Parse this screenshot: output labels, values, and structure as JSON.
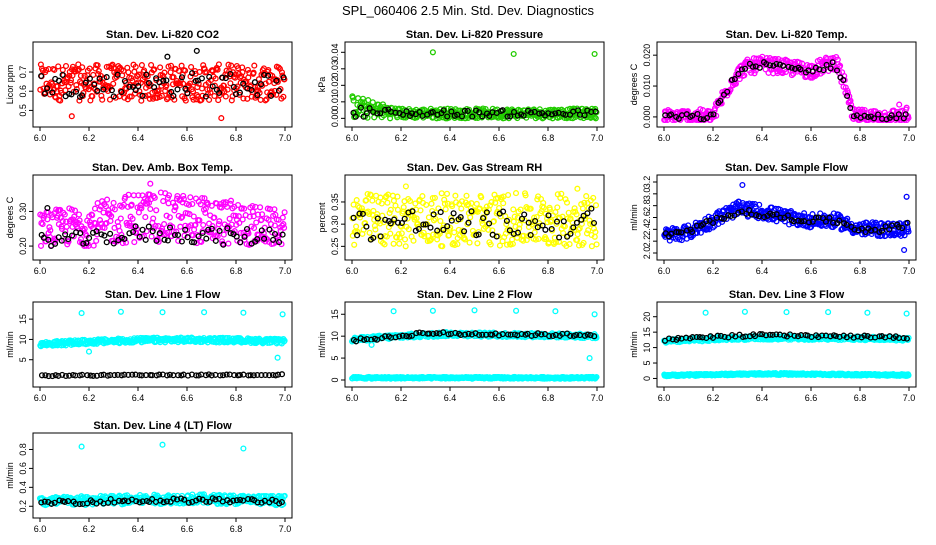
{
  "title": "SPL_060406  2.5 Min. Std. Dev. Diagnostics",
  "colors": {
    "red": "#ff0000",
    "green": "#22cc00",
    "magenta": "#ff00ff",
    "yellow": "#ffff00",
    "blue": "#0000ff",
    "cyan": "#00ffff",
    "black": "#000000"
  },
  "chart_data": [
    {
      "type": "scatter",
      "title": "Stan. Dev. Li-820 CO2",
      "ylabel": "Licor ppm",
      "xlim": [
        6.0,
        7.0
      ],
      "ylim": [
        0.45,
        0.82
      ],
      "xticks": [
        "6.0",
        "6.2",
        "6.4",
        "6.6",
        "6.8",
        "7.0"
      ],
      "yticks": [
        "0.5",
        "0.6",
        "0.7"
      ],
      "series": [
        {
          "color": "red",
          "kind": "band",
          "lo": [
            0.55,
            0.55,
            0.55,
            0.55,
            0.55,
            0.55
          ],
          "hi": [
            0.74,
            0.74,
            0.74,
            0.74,
            0.74,
            0.74
          ]
        },
        {
          "color": "black",
          "kind": "band",
          "lo": [
            0.57,
            0.57,
            0.57,
            0.57,
            0.57,
            0.57
          ],
          "hi": [
            0.7,
            0.7,
            0.7,
            0.7,
            0.7,
            0.7
          ]
        }
      ],
      "outliers": [
        {
          "x": 6.64,
          "y": 0.81,
          "color": "black"
        },
        {
          "x": 6.13,
          "y": 0.47,
          "color": "red"
        },
        {
          "x": 6.74,
          "y": 0.46,
          "color": "red"
        },
        {
          "x": 6.52,
          "y": 0.78,
          "color": "black"
        }
      ]
    },
    {
      "type": "scatter",
      "title": "Stan. Dev. Li-820 Pressure",
      "ylabel": "kPa",
      "xlim": [
        6.0,
        7.0
      ],
      "ylim": [
        -0.001,
        0.042
      ],
      "xticks": [
        "6.0",
        "6.2",
        "6.4",
        "6.6",
        "6.8",
        "7.0"
      ],
      "yticks": [
        "0.00",
        "0.01",
        "0.02",
        "0.03",
        "0.04"
      ],
      "series": [
        {
          "color": "green",
          "kind": "band",
          "lo": [
            0.0,
            0.0,
            0.0,
            0.0,
            0.0,
            0.0
          ],
          "hi": [
            0.014,
            0.006,
            0.006,
            0.006,
            0.006,
            0.006
          ]
        },
        {
          "color": "black",
          "kind": "band",
          "lo": [
            0.001,
            0.001,
            0.001,
            0.001,
            0.001,
            0.001
          ],
          "hi": [
            0.008,
            0.005,
            0.005,
            0.005,
            0.005,
            0.005
          ]
        }
      ],
      "outliers": [
        {
          "x": 6.33,
          "y": 0.04,
          "color": "green"
        },
        {
          "x": 6.66,
          "y": 0.039,
          "color": "green"
        },
        {
          "x": 6.99,
          "y": 0.039,
          "color": "green"
        }
      ]
    },
    {
      "type": "scatter",
      "title": "Stan. Dev. Li-820 Temp.",
      "ylabel": "degrees C",
      "xlim": [
        6.0,
        7.0
      ],
      "ylim": [
        -0.001,
        0.022
      ],
      "xticks": [
        "6.0",
        "6.2",
        "6.4",
        "6.6",
        "6.8",
        "7.0"
      ],
      "yticks": [
        "0.000",
        "0.010",
        "0.020"
      ],
      "series": [
        {
          "color": "magenta",
          "kind": "curve",
          "x": [
            6.0,
            6.2,
            6.23,
            6.28,
            6.33,
            6.4,
            6.5,
            6.6,
            6.7,
            6.74,
            6.77,
            6.8,
            7.0
          ],
          "y": [
            0.0,
            0.0,
            0.005,
            0.012,
            0.016,
            0.017,
            0.016,
            0.015,
            0.018,
            0.01,
            0.0,
            0.0,
            0.0
          ],
          "spread": 0.0025
        },
        {
          "color": "black",
          "kind": "curve",
          "x": [
            6.0,
            6.2,
            6.23,
            6.28,
            6.33,
            6.4,
            6.5,
            6.6,
            6.7,
            6.74,
            6.77,
            6.8,
            7.0
          ],
          "y": [
            0.0,
            0.0,
            0.005,
            0.012,
            0.016,
            0.017,
            0.016,
            0.015,
            0.017,
            0.01,
            0.0,
            0.0,
            0.0
          ],
          "spread": 0.001
        }
      ],
      "outliers": [
        {
          "x": 6.96,
          "y": 0.004,
          "color": "magenta"
        },
        {
          "x": 6.99,
          "y": 0.003,
          "color": "magenta"
        }
      ]
    },
    {
      "type": "scatter",
      "title": "Stan. Dev. Amb. Box Temp.",
      "ylabel": "degrees C",
      "xlim": [
        6.0,
        7.0
      ],
      "ylim": [
        0.18,
        0.385
      ],
      "xticks": [
        "6.0",
        "6.2",
        "6.4",
        "6.6",
        "6.8",
        "7.0"
      ],
      "yticks": [
        "0.20",
        "0.30"
      ],
      "series": [
        {
          "color": "magenta",
          "kind": "band",
          "lo": [
            0.2,
            0.2,
            0.21,
            0.21,
            0.2,
            0.2
          ],
          "hi": [
            0.3,
            0.32,
            0.36,
            0.35,
            0.33,
            0.3
          ]
        },
        {
          "color": "black",
          "kind": "band",
          "lo": [
            0.2,
            0.2,
            0.21,
            0.21,
            0.2,
            0.21
          ],
          "hi": [
            0.24,
            0.24,
            0.26,
            0.26,
            0.25,
            0.26
          ]
        }
      ],
      "outliers": [
        {
          "x": 6.45,
          "y": 0.38,
          "color": "magenta"
        },
        {
          "x": 6.03,
          "y": 0.31,
          "color": "black"
        }
      ]
    },
    {
      "type": "scatter",
      "title": "Stan. Dev. Gas Stream RH",
      "ylabel": "percent",
      "xlim": [
        6.0,
        7.0
      ],
      "ylim": [
        0.235,
        0.395
      ],
      "xticks": [
        "6.0",
        "6.2",
        "6.4",
        "6.6",
        "6.8",
        "7.0"
      ],
      "yticks": [
        "0.25",
        "0.30",
        "0.35"
      ],
      "series": [
        {
          "color": "yellow",
          "kind": "band",
          "lo": [
            0.25,
            0.25,
            0.25,
            0.25,
            0.25,
            0.25
          ],
          "hi": [
            0.37,
            0.37,
            0.37,
            0.37,
            0.37,
            0.37
          ]
        },
        {
          "color": "black",
          "kind": "band",
          "lo": [
            0.26,
            0.27,
            0.27,
            0.27,
            0.27,
            0.26
          ],
          "hi": [
            0.33,
            0.34,
            0.33,
            0.33,
            0.33,
            0.34
          ]
        }
      ],
      "outliers": [
        {
          "x": 6.22,
          "y": 0.385,
          "color": "yellow"
        },
        {
          "x": 6.92,
          "y": 0.38,
          "color": "yellow"
        }
      ]
    },
    {
      "type": "scatter",
      "title": "Stan. Dev. Sample Flow",
      "ylabel": "ml/min",
      "xlim": [
        6.0,
        7.0
      ],
      "ylim": [
        2.0,
        3.2
      ],
      "xticks": [
        "6.0",
        "6.2",
        "6.4",
        "6.6",
        "6.8",
        "7.0"
      ],
      "yticks": [
        "2.0",
        "2.2",
        "2.4",
        "2.6",
        "2.8",
        "3.0",
        "3.2"
      ],
      "series": [
        {
          "color": "blue",
          "kind": "curve",
          "x": [
            6.0,
            6.1,
            6.2,
            6.3,
            6.4,
            6.5,
            6.6,
            6.7,
            6.8,
            6.9,
            7.0
          ],
          "y": [
            2.3,
            2.35,
            2.55,
            2.75,
            2.7,
            2.6,
            2.55,
            2.55,
            2.4,
            2.4,
            2.4
          ],
          "spread": 0.12
        },
        {
          "color": "black",
          "kind": "curve",
          "x": [
            6.0,
            6.1,
            6.2,
            6.3,
            6.4,
            6.5,
            6.6,
            6.7,
            6.8,
            6.9,
            7.0
          ],
          "y": [
            2.3,
            2.35,
            2.55,
            2.7,
            2.65,
            2.6,
            2.55,
            2.55,
            2.4,
            2.4,
            2.5
          ],
          "spread": 0.05
        }
      ],
      "outliers": [
        {
          "x": 6.32,
          "y": 3.15,
          "color": "blue"
        },
        {
          "x": 6.99,
          "y": 2.95,
          "color": "blue"
        },
        {
          "x": 6.98,
          "y": 2.05,
          "color": "blue"
        }
      ]
    },
    {
      "type": "scatter",
      "title": "Stan. Dev. Line 1 Flow",
      "ylabel": "ml/min",
      "xlim": [
        6.0,
        7.0
      ],
      "ylim": [
        0.0,
        17.5
      ],
      "xticks": [
        "6.0",
        "6.2",
        "6.4",
        "6.6",
        "6.8",
        "7.0"
      ],
      "yticks": [
        "5",
        "10",
        "15"
      ],
      "series": [
        {
          "color": "cyan",
          "kind": "curve",
          "x": [
            6.0,
            6.2,
            6.4,
            6.6,
            6.8,
            7.0
          ],
          "y": [
            8.8,
            9.4,
            9.8,
            9.9,
            9.8,
            9.5
          ],
          "spread": 0.6
        },
        {
          "color": "black",
          "kind": "curve",
          "x": [
            6.0,
            7.0
          ],
          "y": [
            1.1,
            1.3
          ],
          "spread": 0.15
        }
      ],
      "outliers": [
        {
          "x": 6.17,
          "y": 16.5,
          "color": "cyan"
        },
        {
          "x": 6.33,
          "y": 16.8,
          "color": "cyan"
        },
        {
          "x": 6.5,
          "y": 16.7,
          "color": "cyan"
        },
        {
          "x": 6.67,
          "y": 16.7,
          "color": "cyan"
        },
        {
          "x": 6.83,
          "y": 16.6,
          "color": "cyan"
        },
        {
          "x": 6.99,
          "y": 16.2,
          "color": "cyan"
        },
        {
          "x": 6.2,
          "y": 7.0,
          "color": "cyan"
        },
        {
          "x": 6.97,
          "y": 5.5,
          "color": "cyan"
        }
      ]
    },
    {
      "type": "scatter",
      "title": "Stan. Dev. Line 2 Flow",
      "ylabel": "ml/min",
      "xlim": [
        6.0,
        7.0
      ],
      "ylim": [
        0.0,
        16.2
      ],
      "xticks": [
        "6.0",
        "6.2",
        "6.4",
        "6.6",
        "6.8",
        "7.0"
      ],
      "yticks": [
        "0",
        "5",
        "10",
        "15"
      ],
      "series": [
        {
          "color": "cyan",
          "kind": "curve",
          "x": [
            6.0,
            6.2,
            6.4,
            6.6,
            6.8,
            7.0
          ],
          "y": [
            9.2,
            10.0,
            10.5,
            10.3,
            10.2,
            10.0
          ],
          "spread": 0.5
        },
        {
          "color": "black",
          "kind": "curve",
          "x": [
            6.0,
            6.2,
            6.3,
            6.4,
            6.6,
            6.8,
            7.0
          ],
          "y": [
            9.0,
            10.0,
            10.8,
            10.5,
            10.5,
            10.3,
            10.3
          ],
          "spread": 0.35
        },
        {
          "color": "cyan",
          "kind": "curve",
          "x": [
            6.0,
            7.0
          ],
          "y": [
            0.5,
            0.5
          ],
          "spread": 0.2
        }
      ],
      "outliers": [
        {
          "x": 6.17,
          "y": 15.7,
          "color": "cyan"
        },
        {
          "x": 6.33,
          "y": 15.8,
          "color": "cyan"
        },
        {
          "x": 6.5,
          "y": 15.9,
          "color": "cyan"
        },
        {
          "x": 6.67,
          "y": 15.8,
          "color": "cyan"
        },
        {
          "x": 6.83,
          "y": 15.7,
          "color": "cyan"
        },
        {
          "x": 6.99,
          "y": 15.0,
          "color": "cyan"
        },
        {
          "x": 6.97,
          "y": 5.0,
          "color": "cyan"
        },
        {
          "x": 6.08,
          "y": 8.0,
          "color": "cyan"
        }
      ]
    },
    {
      "type": "scatter",
      "title": "Stan. Dev. Line 3 Flow",
      "ylabel": "ml/min",
      "xlim": [
        6.0,
        7.0
      ],
      "ylim": [
        -0.5,
        22.5
      ],
      "xticks": [
        "6.0",
        "6.2",
        "6.4",
        "6.6",
        "6.8",
        "7.0"
      ],
      "yticks": [
        "0",
        "5",
        "10",
        "15",
        "20"
      ],
      "series": [
        {
          "color": "cyan",
          "kind": "curve",
          "x": [
            6.0,
            6.2,
            6.4,
            6.6,
            6.8,
            7.0
          ],
          "y": [
            12.0,
            12.8,
            13.2,
            13.1,
            13.0,
            12.8
          ],
          "spread": 0.6
        },
        {
          "color": "black",
          "kind": "curve",
          "x": [
            6.0,
            6.2,
            6.4,
            6.6,
            6.8,
            7.0
          ],
          "y": [
            12.5,
            13.5,
            14.0,
            13.8,
            13.5,
            13.3
          ],
          "spread": 0.4
        },
        {
          "color": "cyan",
          "kind": "curve",
          "x": [
            6.0,
            6.4,
            7.0
          ],
          "y": [
            1.0,
            1.5,
            1.1
          ],
          "spread": 0.3
        }
      ],
      "outliers": [
        {
          "x": 6.17,
          "y": 21.3,
          "color": "cyan"
        },
        {
          "x": 6.33,
          "y": 21.6,
          "color": "cyan"
        },
        {
          "x": 6.5,
          "y": 21.5,
          "color": "cyan"
        },
        {
          "x": 6.67,
          "y": 21.5,
          "color": "cyan"
        },
        {
          "x": 6.83,
          "y": 21.3,
          "color": "cyan"
        },
        {
          "x": 6.99,
          "y": 21.0,
          "color": "cyan"
        }
      ]
    },
    {
      "type": "scatter",
      "title": "Stan. Dev. Line 4 (LT) Flow",
      "ylabel": "ml/min",
      "xlim": [
        6.0,
        7.0
      ],
      "ylim": [
        0.15,
        0.9
      ],
      "xticks": [
        "6.0",
        "6.2",
        "6.4",
        "6.6",
        "6.8",
        "7.0"
      ],
      "yticks": [
        "0.2",
        "0.4",
        "0.6",
        "0.8"
      ],
      "series": [
        {
          "color": "cyan",
          "kind": "curve",
          "x": [
            6.0,
            6.2,
            6.4,
            6.6,
            6.8,
            7.0
          ],
          "y": [
            0.25,
            0.26,
            0.27,
            0.28,
            0.27,
            0.26
          ],
          "spread": 0.05
        },
        {
          "color": "black",
          "kind": "curve",
          "x": [
            6.0,
            6.2,
            6.4,
            6.6,
            6.8,
            7.0
          ],
          "y": [
            0.24,
            0.25,
            0.26,
            0.26,
            0.26,
            0.25
          ],
          "spread": 0.025
        }
      ],
      "outliers": [
        {
          "x": 6.17,
          "y": 0.83,
          "color": "cyan"
        },
        {
          "x": 6.5,
          "y": 0.85,
          "color": "cyan"
        },
        {
          "x": 6.83,
          "y": 0.81,
          "color": "cyan"
        }
      ]
    }
  ]
}
